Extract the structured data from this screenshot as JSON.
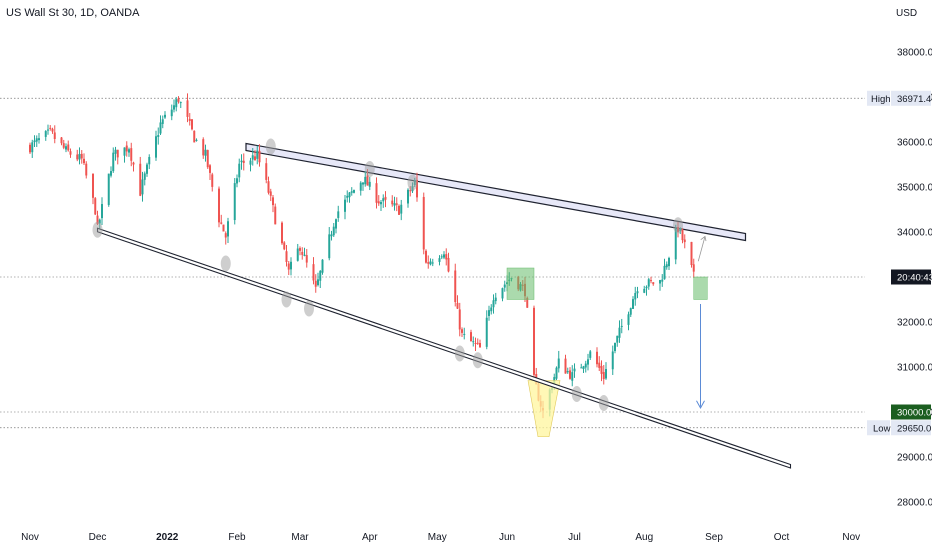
{
  "header": {
    "title": "US Wall St 30, 1D, OANDA"
  },
  "price_axis": {
    "currency": "USD"
  },
  "colors": {
    "up": "#26a69a",
    "down": "#ef5350",
    "trendline": "#1f2330",
    "channel_fill": "#e7e8f8",
    "touch_marker": "#9e9e9e",
    "green_zone": "#66bb6a",
    "yellow_zone": "#fff59d",
    "arrow": "#5b8bd6",
    "target_tag": "#1b5e20",
    "label_tag": "#e3e8f4"
  },
  "markers": {
    "high_label": "High",
    "high_value": "36971.4",
    "low_label": "Low",
    "low_value": "29650.0",
    "last_price_label": "20:40:43",
    "target_label": "30000.0"
  },
  "chart_data": {
    "type": "candlestick",
    "title": "US Wall St 30, 1D, OANDA",
    "ylabel": "USD",
    "ylim": [
      27500,
      39000
    ],
    "y_ticks": [
      28000,
      29000,
      30000,
      31000,
      32000,
      33000,
      34000,
      35000,
      36000,
      37000,
      38000
    ],
    "y_tick_labels": [
      "28000.0",
      "29000.0",
      "30000.0",
      "31000.0",
      "32000.0",
      "33000.0",
      "34000.0",
      "35000.0",
      "36000.0",
      "37000.0",
      "38000.0"
    ],
    "x_tick_labels": [
      "Nov",
      "Dec",
      "2022",
      "Feb",
      "Mar",
      "Apr",
      "May",
      "Jun",
      "Jul",
      "Aug",
      "Sep",
      "Oct",
      "Nov"
    ],
    "x_tick_dates": [
      "2021-11-01",
      "2021-12-01",
      "2022-01-01",
      "2022-02-01",
      "2022-03-01",
      "2022-04-01",
      "2022-05-01",
      "2022-06-01",
      "2022-07-01",
      "2022-08-01",
      "2022-09-01",
      "2022-10-01",
      "2022-11-01"
    ],
    "series": [
      {
        "points": [
          [
            "2021-11-01",
            35900
          ],
          [
            "2021-11-10",
            36200
          ],
          [
            "2021-11-17",
            35800
          ],
          [
            "2021-11-24",
            35600
          ],
          [
            "2021-11-30",
            34500
          ],
          [
            "2021-12-01",
            34050
          ],
          [
            "2021-12-08",
            35700
          ],
          [
            "2021-12-15",
            35900
          ],
          [
            "2021-12-20",
            34900
          ],
          [
            "2021-12-29",
            36400
          ],
          [
            "2022-01-04",
            36800
          ],
          [
            "2022-01-06",
            36970
          ],
          [
            "2022-01-13",
            36100
          ],
          [
            "2022-01-18",
            35700
          ],
          [
            "2022-01-24",
            34300
          ],
          [
            "2022-01-27",
            33900
          ],
          [
            "2022-02-02",
            35500
          ],
          [
            "2022-02-10",
            35700
          ],
          [
            "2022-02-15",
            34900
          ],
          [
            "2022-02-24",
            33100
          ],
          [
            "2022-03-01",
            33700
          ],
          [
            "2022-03-08",
            32700
          ],
          [
            "2022-03-17",
            34400
          ],
          [
            "2022-03-29",
            35200
          ],
          [
            "2022-04-05",
            34700
          ],
          [
            "2022-04-14",
            34500
          ],
          [
            "2022-04-21",
            35100
          ],
          [
            "2022-04-26",
            33300
          ],
          [
            "2022-05-04",
            33600
          ],
          [
            "2022-05-12",
            31700
          ],
          [
            "2022-05-20",
            31400
          ],
          [
            "2022-05-26",
            32600
          ],
          [
            "2022-06-03",
            33000
          ],
          [
            "2022-06-09",
            32700
          ],
          [
            "2022-06-13",
            30700
          ],
          [
            "2022-06-17",
            30000
          ],
          [
            "2022-06-24",
            31100
          ],
          [
            "2022-06-30",
            30800
          ],
          [
            "2022-07-08",
            31300
          ],
          [
            "2022-07-14",
            30800
          ],
          [
            "2022-07-22",
            31900
          ],
          [
            "2022-07-29",
            32800
          ],
          [
            "2022-08-08",
            32900
          ],
          [
            "2022-08-16",
            34100
          ],
          [
            "2022-08-19",
            33700
          ],
          [
            "2022-08-23",
            33000
          ]
        ]
      }
    ],
    "annotations": {
      "upper_trendline": {
        "start": [
          "2022-02-05",
          35900
        ],
        "end": [
          "2022-09-15",
          33900
        ]
      },
      "lower_trendline": {
        "start": [
          "2021-12-01",
          34050
        ],
        "end": [
          "2022-10-05",
          28800
        ]
      },
      "green_zone_1": {
        "from": "2022-06-01",
        "to": "2022-06-13",
        "high": 33200,
        "low": 32500
      },
      "green_zone_2": {
        "from": "2022-08-23",
        "to": "2022-08-29",
        "high": 33000,
        "low": 32500
      },
      "target_level": 30000,
      "high_level": 36971.4,
      "low_level": 29650.0
    }
  }
}
